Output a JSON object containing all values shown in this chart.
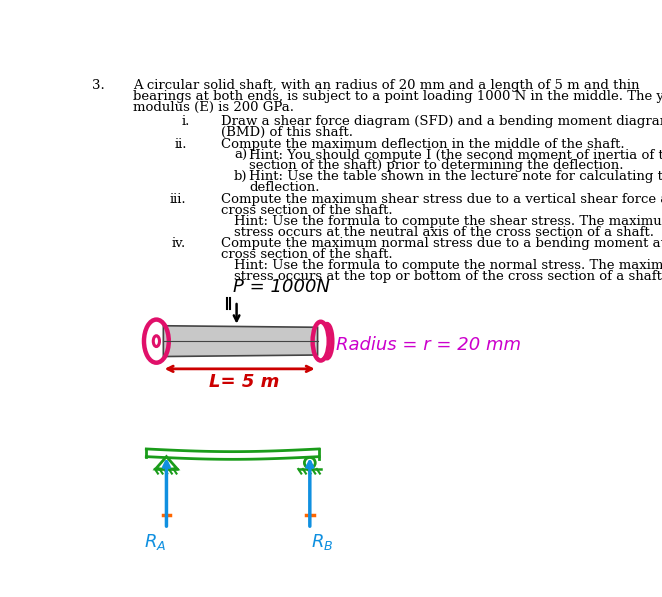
{
  "title_num": "3.",
  "body_line1": "A circular solid shaft, with an radius of 20 mm and a length of 5 m and thin",
  "body_line2": "bearings at both ends, is subject to a point loading 1000 N in the middle. The young’s",
  "body_line3": "modulus (E) is 200 GPa.",
  "i_label": "i.",
  "i_text1": "Draw a shear force diagram (SFD) and a bending moment diagram",
  "i_text2": "(BMD) of this shaft.",
  "ii_label": "ii.",
  "ii_text": "Compute the maximum deflection in the middle of the shaft.",
  "a_label": "a)",
  "a_text1": "Hint: You should compute I (the second moment of inertia of the cross-",
  "a_text2": "section of the shaft) prior to determining the deflection.",
  "b_label": "b)",
  "b_text1": "Hint: Use the table shown in the lecture note for calculating the",
  "b_text2": "deflection.",
  "iii_label": "iii.",
  "iii_text1": "Compute the maximum shear stress due to a vertical shear force at a",
  "iii_text2": "cross section of the shaft.",
  "iii_hint1": "Hint: Use the formula to compute the shear stress. The maximum shear",
  "iii_hint2": "stress occurs at the neutral axis of the cross section of a shaft.",
  "iv_label": "iv.",
  "iv_text1": "Compute the maximum normal stress due to a bending moment at a",
  "iv_text2": "cross section of the shaft.",
  "iv_hint1": "Hint: Use the formula to compute the normal stress. The maximum normal",
  "iv_hint2": "stress occurs at the top or bottom of the cross section of a shaft.",
  "force_label": "P = 1000N",
  "radius_label": "Radius = r = 20 mm",
  "length_label": "L= 5 m",
  "bg_color": "#ffffff",
  "text_color": "#000000",
  "shaft_fill": "#c8c8c8",
  "shaft_edge": "#444444",
  "bearing_color": "#e0106a",
  "dim_color": "#cc0000",
  "radius_color": "#cc00cc",
  "reaction_color": "#1090e0",
  "beam_color": "#1a9c1a",
  "support_color": "#1a9c1a",
  "orange_color": "#ff6600",
  "fs_body": 9.5,
  "fs_diagram": 12
}
